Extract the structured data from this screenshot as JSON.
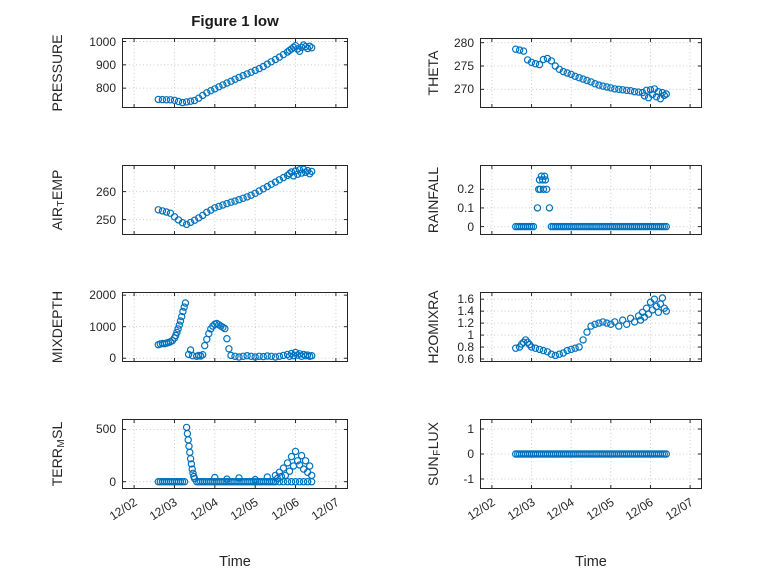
{
  "title": "Figure 1 low",
  "accent_color": "#0072BD",
  "axis_color": "#262626",
  "grid_color": "#cccccc",
  "chart_data": {
    "type": "scatter",
    "marker": "o",
    "xlabel": "Time",
    "xlim": [
      -0.3,
      5.3
    ],
    "xticks": [
      0,
      1,
      2,
      3,
      4,
      5
    ],
    "xtick_labels": [
      "12/02",
      "12/03",
      "12/04",
      "12/05",
      "12/06",
      "12/07"
    ],
    "grid": true,
    "subplots": [
      {
        "name": "PRESSURE",
        "row": 0,
        "col": 0,
        "ylabel_parts": [
          {
            "t": "PRESSURE"
          }
        ],
        "ylim": [
          715,
          1015
        ],
        "yticks": [
          800,
          900,
          1000
        ],
        "ytick_labels": [
          "800",
          "900",
          "1000"
        ],
        "points": {
          "x": [
            0.6,
            0.7,
            0.8,
            0.9,
            1.0,
            1.1,
            1.2,
            1.3,
            1.4,
            1.5,
            1.6,
            1.7,
            1.8,
            1.9,
            2.0,
            2.1,
            2.2,
            2.3,
            2.4,
            2.5,
            2.6,
            2.7,
            2.8,
            2.9,
            3.0,
            3.1,
            3.2,
            3.3,
            3.4,
            3.5,
            3.6,
            3.7,
            3.8,
            3.85,
            3.9,
            3.95,
            4.0,
            4.05,
            4.1,
            4.15,
            4.2,
            4.25,
            4.3,
            4.35,
            4.4
          ],
          "y": [
            752,
            751,
            750,
            750,
            748,
            743,
            738,
            741,
            744,
            747,
            757,
            769,
            780,
            789,
            797,
            806,
            814,
            822,
            830,
            838,
            846,
            854,
            861,
            868,
            876,
            884,
            893,
            903,
            913,
            923,
            933,
            944,
            955,
            962,
            968,
            975,
            982,
            968,
            958,
            975,
            985,
            978,
            970,
            980,
            973
          ]
        }
      },
      {
        "name": "THETA",
        "row": 0,
        "col": 1,
        "ylabel_parts": [
          {
            "t": "THETA"
          }
        ],
        "ylim": [
          266,
          281
        ],
        "yticks": [
          270,
          275,
          280
        ],
        "ytick_labels": [
          "270",
          "275",
          "280"
        ],
        "points": {
          "x": [
            0.6,
            0.7,
            0.8,
            0.9,
            1.0,
            1.1,
            1.2,
            1.3,
            1.4,
            1.5,
            1.6,
            1.7,
            1.8,
            1.9,
            2.0,
            2.1,
            2.2,
            2.3,
            2.4,
            2.5,
            2.6,
            2.7,
            2.8,
            2.9,
            3.0,
            3.1,
            3.2,
            3.3,
            3.4,
            3.5,
            3.6,
            3.7,
            3.8,
            3.85,
            3.9,
            3.95,
            4.0,
            4.05,
            4.1,
            4.15,
            4.2,
            4.25,
            4.3,
            4.35,
            4.4
          ],
          "y": [
            278.6,
            278.4,
            278.2,
            276.3,
            275.8,
            275.5,
            275.3,
            276.4,
            276.6,
            276.1,
            275.0,
            274.3,
            273.8,
            273.5,
            273.2,
            272.8,
            272.5,
            272.2,
            271.9,
            271.6,
            271.2,
            270.9,
            270.7,
            270.5,
            270.3,
            270.1,
            270.0,
            269.9,
            269.8,
            269.7,
            269.5,
            269.4,
            269.3,
            268.6,
            269.8,
            268.2,
            269.9,
            268.9,
            270.1,
            268.4,
            269.5,
            268.0,
            269.3,
            268.7,
            269.0
          ]
        }
      },
      {
        "name": "AIR_TEMP",
        "row": 1,
        "col": 0,
        "ylabel_parts": [
          {
            "t": "AIR"
          },
          {
            "t": "T",
            "sub": true
          },
          {
            "t": "EMP"
          }
        ],
        "ylim": [
          244.5,
          269.5
        ],
        "yticks": [
          250,
          260
        ],
        "ytick_labels": [
          "250",
          "260"
        ],
        "points": {
          "x": [
            0.6,
            0.7,
            0.8,
            0.9,
            1.0,
            1.1,
            1.2,
            1.3,
            1.4,
            1.5,
            1.6,
            1.7,
            1.8,
            1.9,
            2.0,
            2.1,
            2.2,
            2.3,
            2.4,
            2.5,
            2.6,
            2.7,
            2.8,
            2.9,
            3.0,
            3.1,
            3.2,
            3.3,
            3.4,
            3.5,
            3.6,
            3.7,
            3.8,
            3.85,
            3.9,
            3.95,
            4.0,
            4.05,
            4.1,
            4.15,
            4.2,
            4.25,
            4.3,
            4.35,
            4.4
          ],
          "y": [
            253.5,
            253.1,
            252.7,
            252.3,
            251.0,
            249.9,
            248.9,
            248.3,
            249.0,
            249.8,
            250.6,
            251.5,
            252.6,
            253.4,
            254.2,
            254.7,
            255.2,
            255.7,
            256.2,
            256.6,
            257.1,
            257.6,
            258.1,
            258.7,
            259.4,
            260.2,
            261.0,
            261.8,
            262.6,
            263.4,
            264.2,
            265.0,
            265.8,
            266.4,
            267.0,
            265.6,
            267.4,
            266.2,
            267.8,
            266.6,
            268.0,
            266.9,
            267.5,
            266.4,
            267.2
          ]
        }
      },
      {
        "name": "RAINFALL",
        "row": 1,
        "col": 1,
        "ylabel_parts": [
          {
            "t": "RAINFALL"
          }
        ],
        "ylim": [
          -0.045,
          0.33
        ],
        "yticks": [
          0,
          0.1,
          0.2
        ],
        "ytick_labels": [
          "0",
          "0.1",
          "0.2"
        ],
        "runs": [
          {
            "x0": 0.6,
            "x1": 1.05,
            "step": 0.05,
            "y": 0
          },
          {
            "x0": 1.5,
            "x1": 4.4,
            "step": 0.05,
            "y": 0
          }
        ],
        "points": {
          "x": [
            1.15,
            1.18,
            1.2,
            1.22,
            1.25,
            1.28,
            1.3,
            1.33,
            1.35,
            1.38,
            1.45
          ],
          "y": [
            0.1,
            0.2,
            0.25,
            0.2,
            0.27,
            0.25,
            0.2,
            0.27,
            0.25,
            0.2,
            0.1
          ]
        }
      },
      {
        "name": "MIXDEPTH",
        "row": 2,
        "col": 0,
        "ylabel_parts": [
          {
            "t": "MIXDEPTH"
          }
        ],
        "ylim": [
          -120,
          2100
        ],
        "yticks": [
          0,
          1000,
          2000
        ],
        "ytick_labels": [
          "0",
          "1000",
          "2000"
        ],
        "points": {
          "x": [
            0.6,
            0.65,
            0.7,
            0.75,
            0.8,
            0.85,
            0.9,
            0.95,
            1.0,
            1.03,
            1.06,
            1.09,
            1.12,
            1.15,
            1.18,
            1.21,
            1.24,
            1.27,
            1.35,
            1.4,
            1.45,
            1.55,
            1.6,
            1.65,
            1.7,
            1.75,
            1.8,
            1.85,
            1.9,
            1.95,
            2.0,
            2.05,
            2.1,
            2.15,
            2.2,
            2.25,
            2.3,
            2.35,
            2.4,
            2.5,
            2.6,
            2.7,
            2.8,
            2.9,
            3.0,
            3.1,
            3.2,
            3.3,
            3.4,
            3.5,
            3.6,
            3.7,
            3.8,
            3.85,
            3.9,
            3.95,
            4.0,
            4.05,
            4.1,
            4.15,
            4.2,
            4.25,
            4.3,
            4.35,
            4.4
          ],
          "y": [
            430,
            450,
            470,
            460,
            480,
            500,
            520,
            560,
            640,
            720,
            820,
            930,
            1050,
            1180,
            1320,
            1480,
            1620,
            1750,
            120,
            260,
            80,
            60,
            90,
            70,
            110,
            400,
            600,
            780,
            930,
            1020,
            1080,
            1100,
            1060,
            1020,
            980,
            940,
            620,
            300,
            90,
            60,
            40,
            60,
            80,
            60,
            40,
            60,
            50,
            70,
            60,
            40,
            60,
            90,
            120,
            60,
            150,
            80,
            180,
            100,
            140,
            60,
            120,
            80,
            100,
            60,
            80
          ]
        }
      },
      {
        "name": "H2OMIXRA",
        "row": 2,
        "col": 1,
        "ylabel_parts": [
          {
            "t": "H2OMIXRA"
          }
        ],
        "ylim": [
          0.55,
          1.72
        ],
        "yticks": [
          0.6,
          0.8,
          1,
          1.2,
          1.4,
          1.6
        ],
        "ytick_labels": [
          "0.6",
          "0.8",
          "1",
          "1.2",
          "1.4",
          "1.6"
        ],
        "points": {
          "x": [
            0.6,
            0.7,
            0.75,
            0.8,
            0.85,
            0.9,
            0.95,
            1.0,
            1.1,
            1.2,
            1.3,
            1.4,
            1.5,
            1.6,
            1.7,
            1.8,
            1.9,
            2.0,
            2.1,
            2.2,
            2.3,
            2.4,
            2.5,
            2.6,
            2.7,
            2.8,
            2.9,
            3.0,
            3.1,
            3.2,
            3.3,
            3.4,
            3.5,
            3.6,
            3.7,
            3.75,
            3.8,
            3.85,
            3.9,
            3.95,
            4.0,
            4.05,
            4.1,
            4.15,
            4.2,
            4.25,
            4.3,
            4.35,
            4.4
          ],
          "y": [
            0.78,
            0.8,
            0.85,
            0.88,
            0.92,
            0.88,
            0.84,
            0.8,
            0.78,
            0.76,
            0.74,
            0.72,
            0.68,
            0.66,
            0.68,
            0.7,
            0.74,
            0.76,
            0.78,
            0.8,
            0.92,
            1.05,
            1.15,
            1.18,
            1.2,
            1.22,
            1.2,
            1.18,
            1.22,
            1.15,
            1.25,
            1.18,
            1.28,
            1.22,
            1.32,
            1.25,
            1.38,
            1.3,
            1.45,
            1.35,
            1.55,
            1.42,
            1.6,
            1.48,
            1.38,
            1.52,
            1.62,
            1.45,
            1.4
          ]
        }
      },
      {
        "name": "TERR_MSL",
        "row": 3,
        "col": 0,
        "ylabel_parts": [
          {
            "t": "TERR"
          },
          {
            "t": "M",
            "sub": true
          },
          {
            "t": "SL"
          }
        ],
        "ylim": [
          -70,
          600
        ],
        "yticks": [
          0,
          500
        ],
        "ytick_labels": [
          "0",
          "500"
        ],
        "runs": [
          {
            "x0": 0.6,
            "x1": 1.25,
            "step": 0.05,
            "y": 0
          },
          {
            "x0": 1.55,
            "x1": 3.45,
            "step": 0.05,
            "y": 0
          },
          {
            "x0": 3.5,
            "x1": 4.4,
            "step": 0.1,
            "y": 0
          }
        ],
        "points": {
          "x": [
            1.3,
            1.32,
            1.34,
            1.36,
            1.38,
            1.4,
            1.42,
            1.44,
            1.46,
            1.48,
            1.5,
            2.0,
            2.3,
            2.6,
            3.0,
            3.3,
            3.5,
            3.55,
            3.6,
            3.65,
            3.7,
            3.75,
            3.8,
            3.85,
            3.9,
            3.95,
            4.0,
            4.05,
            4.1,
            4.15,
            4.2,
            4.25,
            4.3,
            4.35,
            4.4
          ],
          "y": [
            520,
            460,
            400,
            340,
            280,
            220,
            170,
            120,
            80,
            50,
            30,
            40,
            25,
            35,
            20,
            45,
            60,
            30,
            90,
            50,
            130,
            60,
            180,
            100,
            240,
            150,
            290,
            200,
            160,
            250,
            120,
            200,
            90,
            150,
            60
          ]
        }
      },
      {
        "name": "SUN_FLUX",
        "row": 3,
        "col": 1,
        "ylabel_parts": [
          {
            "t": "SUN"
          },
          {
            "t": "F",
            "sub": true
          },
          {
            "t": "LUX"
          }
        ],
        "ylim": [
          -1.4,
          1.4
        ],
        "yticks": [
          -1,
          0,
          1
        ],
        "ytick_labels": [
          "-1",
          "0",
          "1"
        ],
        "runs": [
          {
            "x0": 0.6,
            "x1": 4.4,
            "step": 0.05,
            "y": 0
          }
        ]
      }
    ]
  }
}
